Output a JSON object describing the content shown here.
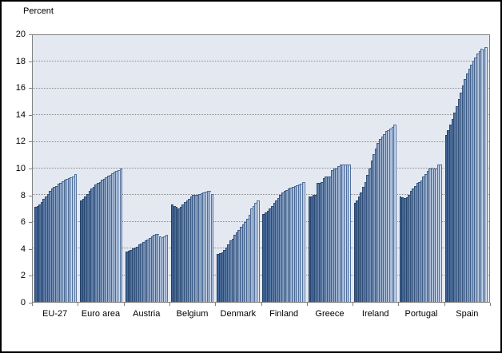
{
  "chart_data": {
    "type": "bar",
    "unit_label": "Percent",
    "ylim": [
      0,
      20
    ],
    "yticks": [
      0,
      2,
      4,
      6,
      8,
      10,
      12,
      14,
      16,
      18,
      20
    ],
    "grid": "horizontal dotted lines at even values",
    "legend_position": "none",
    "bars_per_group": 20,
    "categories": [
      "EU-27",
      "Euro area",
      "Austria",
      "Belgium",
      "Denmark",
      "Finland",
      "Greece",
      "Ireland",
      "Portugal",
      "Spain"
    ],
    "groups": [
      {
        "label": "EU-27",
        "values": [
          7.1,
          7.2,
          7.3,
          7.5,
          7.7,
          7.9,
          8.1,
          8.3,
          8.5,
          8.6,
          8.7,
          8.85,
          8.95,
          9.05,
          9.15,
          9.2,
          9.3,
          9.35,
          9.4,
          9.6
        ]
      },
      {
        "label": "Euro area",
        "values": [
          7.6,
          7.7,
          7.9,
          8.1,
          8.3,
          8.5,
          8.65,
          8.8,
          8.9,
          9.0,
          9.15,
          9.25,
          9.35,
          9.45,
          9.55,
          9.65,
          9.75,
          9.85,
          9.9,
          10.0
        ]
      },
      {
        "label": "Austria",
        "values": [
          3.8,
          3.85,
          3.9,
          4.0,
          4.05,
          4.15,
          4.3,
          4.4,
          4.5,
          4.6,
          4.7,
          4.8,
          4.9,
          5.0,
          5.1,
          5.1,
          4.9,
          4.85,
          4.9,
          5.0
        ]
      },
      {
        "label": "Belgium",
        "values": [
          7.3,
          7.2,
          7.1,
          7.0,
          7.1,
          7.3,
          7.5,
          7.6,
          7.7,
          7.9,
          8.0,
          8.0,
          8.05,
          8.1,
          8.15,
          8.2,
          8.25,
          8.3,
          8.3,
          8.1
        ]
      },
      {
        "label": "Denmark",
        "values": [
          3.6,
          3.65,
          3.7,
          3.9,
          4.1,
          4.3,
          4.6,
          4.75,
          5.0,
          5.2,
          5.4,
          5.6,
          5.8,
          6.0,
          6.25,
          6.55,
          7.0,
          7.2,
          7.4,
          7.6
        ]
      },
      {
        "label": "Finland",
        "values": [
          6.6,
          6.7,
          6.8,
          7.0,
          7.2,
          7.4,
          7.6,
          7.8,
          8.0,
          8.2,
          8.35,
          8.4,
          8.5,
          8.55,
          8.6,
          8.7,
          8.75,
          8.8,
          8.85,
          9.0
        ]
      },
      {
        "label": "Greece",
        "values": [
          7.9,
          7.9,
          8.0,
          8.0,
          8.9,
          8.9,
          9.0,
          9.3,
          9.4,
          9.4,
          9.4,
          9.9,
          10.0,
          10.0,
          10.2,
          10.3,
          10.3,
          10.3,
          10.3,
          10.3
        ]
      },
      {
        "label": "Ireland",
        "values": [
          7.4,
          7.6,
          7.9,
          8.2,
          8.6,
          9.0,
          9.5,
          10.0,
          10.6,
          11.1,
          11.5,
          11.9,
          12.2,
          12.4,
          12.6,
          12.8,
          12.9,
          13.0,
          13.1,
          13.3
        ]
      },
      {
        "label": "Portugal",
        "values": [
          7.9,
          7.85,
          7.8,
          7.85,
          8.0,
          8.3,
          8.5,
          8.7,
          8.9,
          9.0,
          9.1,
          9.4,
          9.6,
          9.8,
          10.0,
          10.05,
          10.0,
          10.0,
          10.3,
          10.3
        ]
      },
      {
        "label": "Spain",
        "values": [
          12.5,
          12.9,
          13.3,
          13.7,
          14.2,
          14.7,
          15.2,
          15.7,
          16.2,
          16.7,
          17.1,
          17.5,
          17.8,
          18.1,
          18.3,
          18.6,
          18.8,
          19.0,
          18.95,
          19.1
        ]
      }
    ],
    "colors": {
      "plot_background": "#e4e8f1",
      "axis_line": "#808080",
      "gridline": "#8a8a8a",
      "frame_border": "#000000",
      "text": "#000000",
      "bar_fill_dark_start": "#35577f",
      "bar_fill_dark_end": "#4a6ea3",
      "bar_fill_light_start": "#9db3d6",
      "bar_fill_light_end": "#f0f4fa",
      "bar_edge_dark": "#24436b",
      "bar_edge_light": "#51729f"
    }
  }
}
